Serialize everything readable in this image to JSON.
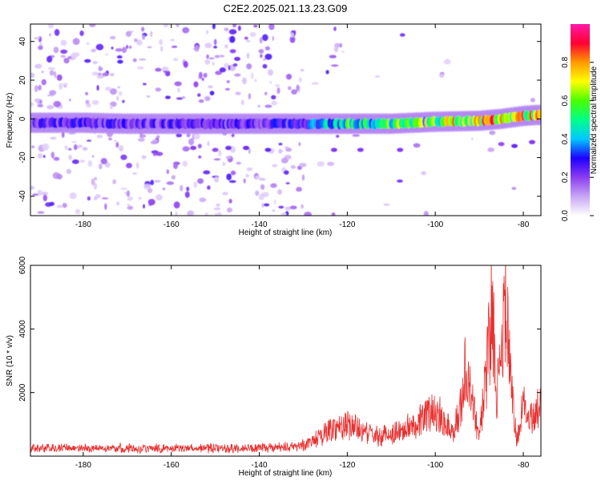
{
  "title": "C2E2.2025.021.13.23.G09",
  "chart_data": [
    {
      "type": "heatmap",
      "panel": "spectrogram",
      "xlabel": "Height of straight line (km)",
      "ylabel": "Frequency (Hz)",
      "xlim": [
        -192,
        -76
      ],
      "ylim": [
        -50,
        49
      ],
      "xticks": [
        -180,
        -160,
        -140,
        -120,
        -100,
        -80
      ],
      "yticks": [
        -40,
        -20,
        0,
        20,
        40
      ],
      "colorbar": {
        "label": "Normalized spectral amplitude",
        "range": [
          0.0,
          1.0
        ],
        "ticks": [
          0.0,
          0.2,
          0.4,
          0.6,
          0.8
        ],
        "colors": [
          "#ffffff",
          "#c7a6f4",
          "#8b3df0",
          "#1f00ff",
          "#00c8ff",
          "#00ff8a",
          "#48ff00",
          "#ffff00",
          "#ff9a00",
          "#ff0033",
          "#ff1aa8"
        ]
      },
      "ridge": {
        "x": [
          -192,
          -180,
          -170,
          -160,
          -150,
          -140,
          -130,
          -120,
          -110,
          -100,
          -90,
          -85,
          -80,
          -77
        ],
        "frequency": [
          -2,
          -2,
          -2.5,
          -2.5,
          -2.5,
          -2.5,
          -2.5,
          -2.5,
          -2.5,
          -1.5,
          -1,
          0,
          1.5,
          2
        ],
        "amplitude": [
          0.25,
          0.28,
          0.25,
          0.25,
          0.24,
          0.26,
          0.3,
          0.55,
          0.6,
          0.65,
          0.8,
          0.85,
          0.8,
          0.75
        ]
      },
      "scatter_cutoff_x": -130
    },
    {
      "type": "line",
      "panel": "snr",
      "xlabel": "Height of straight line (km)",
      "ylabel": "SNR (10 * v/v)",
      "xlim": [
        -192,
        -76
      ],
      "ylim": [
        0,
        6000
      ],
      "xticks": [
        -180,
        -160,
        -140,
        -120,
        -100,
        -80
      ],
      "yticks": [
        2000,
        4000,
        6000
      ],
      "color": "#e8302f",
      "envelope": {
        "x": [
          -192,
          -140,
          -132,
          -128,
          -124,
          -121,
          -119,
          -117,
          -113,
          -110,
          -106,
          -103,
          -100,
          -98,
          -96,
          -94,
          -93,
          -92,
          -90,
          -88.5,
          -87,
          -86,
          -85,
          -84,
          -83,
          -81.5,
          -80,
          -78,
          -76
        ],
        "snr": [
          300,
          300,
          350,
          550,
          1000,
          1200,
          1200,
          950,
          750,
          850,
          1100,
          1400,
          1800,
          1350,
          900,
          2000,
          3500,
          2300,
          800,
          2900,
          6000,
          2500,
          3500,
          6100,
          3000,
          600,
          1900,
          1500,
          2000
        ]
      }
    }
  ]
}
